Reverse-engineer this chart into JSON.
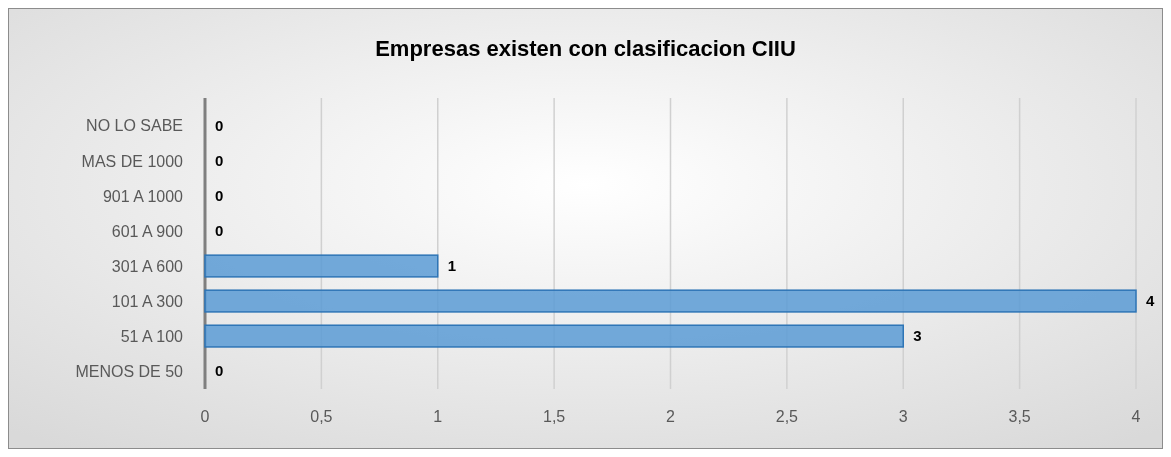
{
  "chart_data": {
    "type": "bar",
    "orientation": "horizontal",
    "title": "Empresas existen con clasificacion CIIU",
    "categories": [
      "NO LO SABE",
      "MAS DE 1000",
      "901 A 1000",
      "601 A 900",
      "301 A 600",
      "101 A 300",
      "51 A 100",
      "MENOS DE 50"
    ],
    "values": [
      0,
      0,
      0,
      0,
      1,
      4,
      3,
      0
    ],
    "color": "#5b9bd5",
    "xlim": [
      0,
      4
    ],
    "xticks": [
      0,
      {
        "value": 0.5,
        "label": "0,5"
      },
      1,
      {
        "value": 1.5,
        "label": "1,5"
      },
      2,
      {
        "value": 2.5,
        "label": "2,5"
      },
      3,
      {
        "value": 3.5,
        "label": "3,5"
      },
      4
    ],
    "grid": "x",
    "data_labels": true
  }
}
